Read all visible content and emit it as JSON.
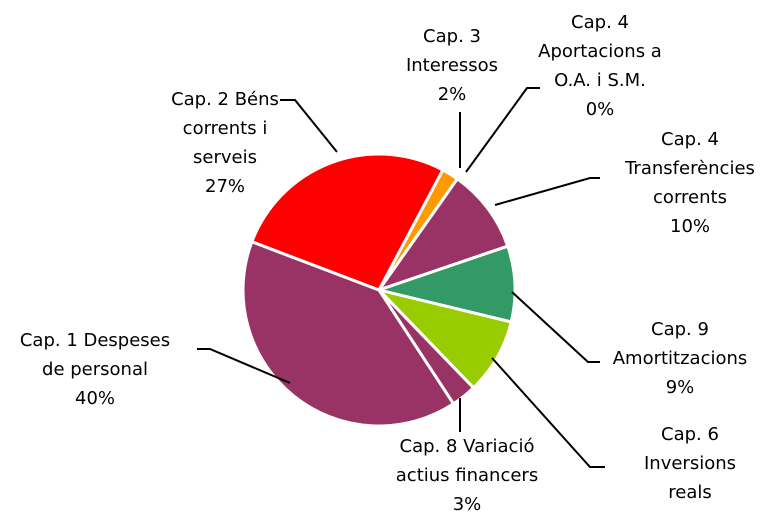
{
  "chart_data": {
    "type": "pie",
    "categories": [
      "Cap. 3\nInteressos",
      "Cap. 4\nAportacions a\nO.A. i S.M.",
      "Cap. 4\nTransferències\ncorrents",
      "Cap. 9\nAmortitzacions",
      "Cap. 6\nInversions reals",
      "Cap. 8 Variació\nactius financers",
      "Cap. 1 Despeses\nde personal",
      "Cap. 2 Béns\ncorrents i\nserveis"
    ],
    "values": [
      2,
      0,
      10,
      9,
      9,
      3,
      40,
      27
    ],
    "value_labels": [
      "2%",
      "0%",
      "10%",
      "9%",
      "9%",
      "3%",
      "40%",
      "27%"
    ],
    "colors": [
      "#ff9900",
      "#993366",
      "#993366",
      "#339966",
      "#99cc00",
      "#993366",
      "#993366",
      "#ff0000"
    ]
  }
}
